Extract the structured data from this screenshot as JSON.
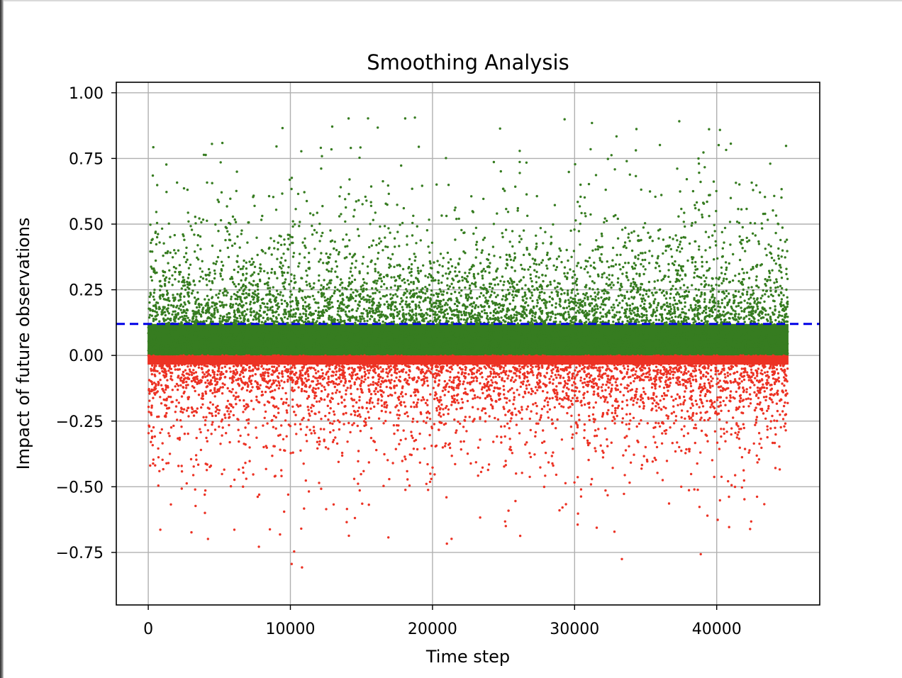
{
  "chart_data": {
    "type": "scatter",
    "title": "Smoothing Analysis",
    "xlabel": "Time step",
    "ylabel": "Impact of future observations",
    "xlim": [
      -2250,
      47250
    ],
    "ylim": [
      -0.95,
      1.04
    ],
    "x_ticks": [
      0,
      10000,
      20000,
      30000,
      40000
    ],
    "x_tick_labels": [
      "0",
      "10000",
      "20000",
      "30000",
      "40000"
    ],
    "y_ticks": [
      1.0,
      0.75,
      0.5,
      0.25,
      0.0,
      -0.25,
      -0.5,
      -0.75
    ],
    "y_tick_labels": [
      "1.00",
      "0.75",
      "0.50",
      "0.25",
      "0.00",
      "−0.25",
      "−0.50",
      "−0.75"
    ],
    "grid": true,
    "x_range": [
      0,
      45000
    ],
    "series": [
      {
        "color": "#367c20",
        "condition": "y >= 0",
        "y_range": [
          0.0,
          0.95
        ],
        "density": "dense near 0, sparse toward 0.95"
      },
      {
        "color": "#ec3224",
        "condition": "y < 0",
        "y_range": [
          -0.87,
          0.0
        ],
        "density": "dense near 0, sparse toward -0.87"
      }
    ],
    "reference_line": {
      "y": 0.12,
      "color": "#0000e6",
      "style": "dashed"
    }
  }
}
